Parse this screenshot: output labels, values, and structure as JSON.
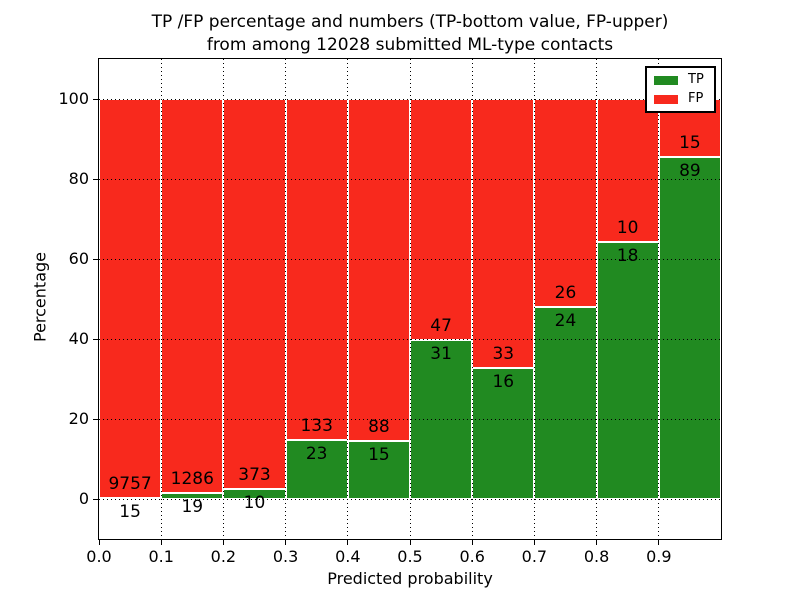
{
  "header": {
    "title_line1": "TP /FP percentage and numbers (TP-bottom value, FP-upper)",
    "title_line2": "from among 12028 submitted ML-type contacts"
  },
  "chart_data": {
    "type": "bar",
    "stacked": true,
    "normalized": "each bar scaled to 100 percent, TP bottom (green), FP top (red)",
    "title": "TP /FP percentage and numbers (TP-bottom value, FP-upper) from among 12028 submitted ML-type contacts",
    "xlabel": "Predicted probability",
    "ylabel": "Percentage",
    "total_contacts": 12028,
    "categories": [
      "0.0-0.1",
      "0.1-0.2",
      "0.2-0.3",
      "0.3-0.4",
      "0.4-0.5",
      "0.5-0.6",
      "0.6-0.7",
      "0.7-0.8",
      "0.8-0.9",
      "0.9-1.0"
    ],
    "series": [
      {
        "name": "TP",
        "color": "#218a21",
        "counts": [
          15,
          19,
          10,
          23,
          15,
          31,
          16,
          24,
          18,
          89
        ]
      },
      {
        "name": "FP",
        "color": "#f8291d",
        "counts": [
          9757,
          1286,
          373,
          133,
          88,
          47,
          33,
          26,
          10,
          15
        ]
      }
    ],
    "tp_percent": [
      0.15,
      1.46,
      2.61,
      14.74,
      14.56,
      39.74,
      32.65,
      48.0,
      64.29,
      85.58
    ],
    "xticks": [
      "0.0",
      "0.1",
      "0.2",
      "0.3",
      "0.4",
      "0.5",
      "0.6",
      "0.7",
      "0.8",
      "0.9"
    ],
    "yticks": [
      0,
      20,
      40,
      60,
      80,
      100
    ],
    "xlim": [
      0.0,
      1.0
    ],
    "ylim": [
      -10,
      110
    ],
    "grid": "dotted black gridlines on both axes",
    "legend": {
      "position": "upper right",
      "entries": [
        {
          "label": "TP",
          "color": "#218a21"
        },
        {
          "label": "FP",
          "color": "#f8291d"
        }
      ]
    }
  }
}
